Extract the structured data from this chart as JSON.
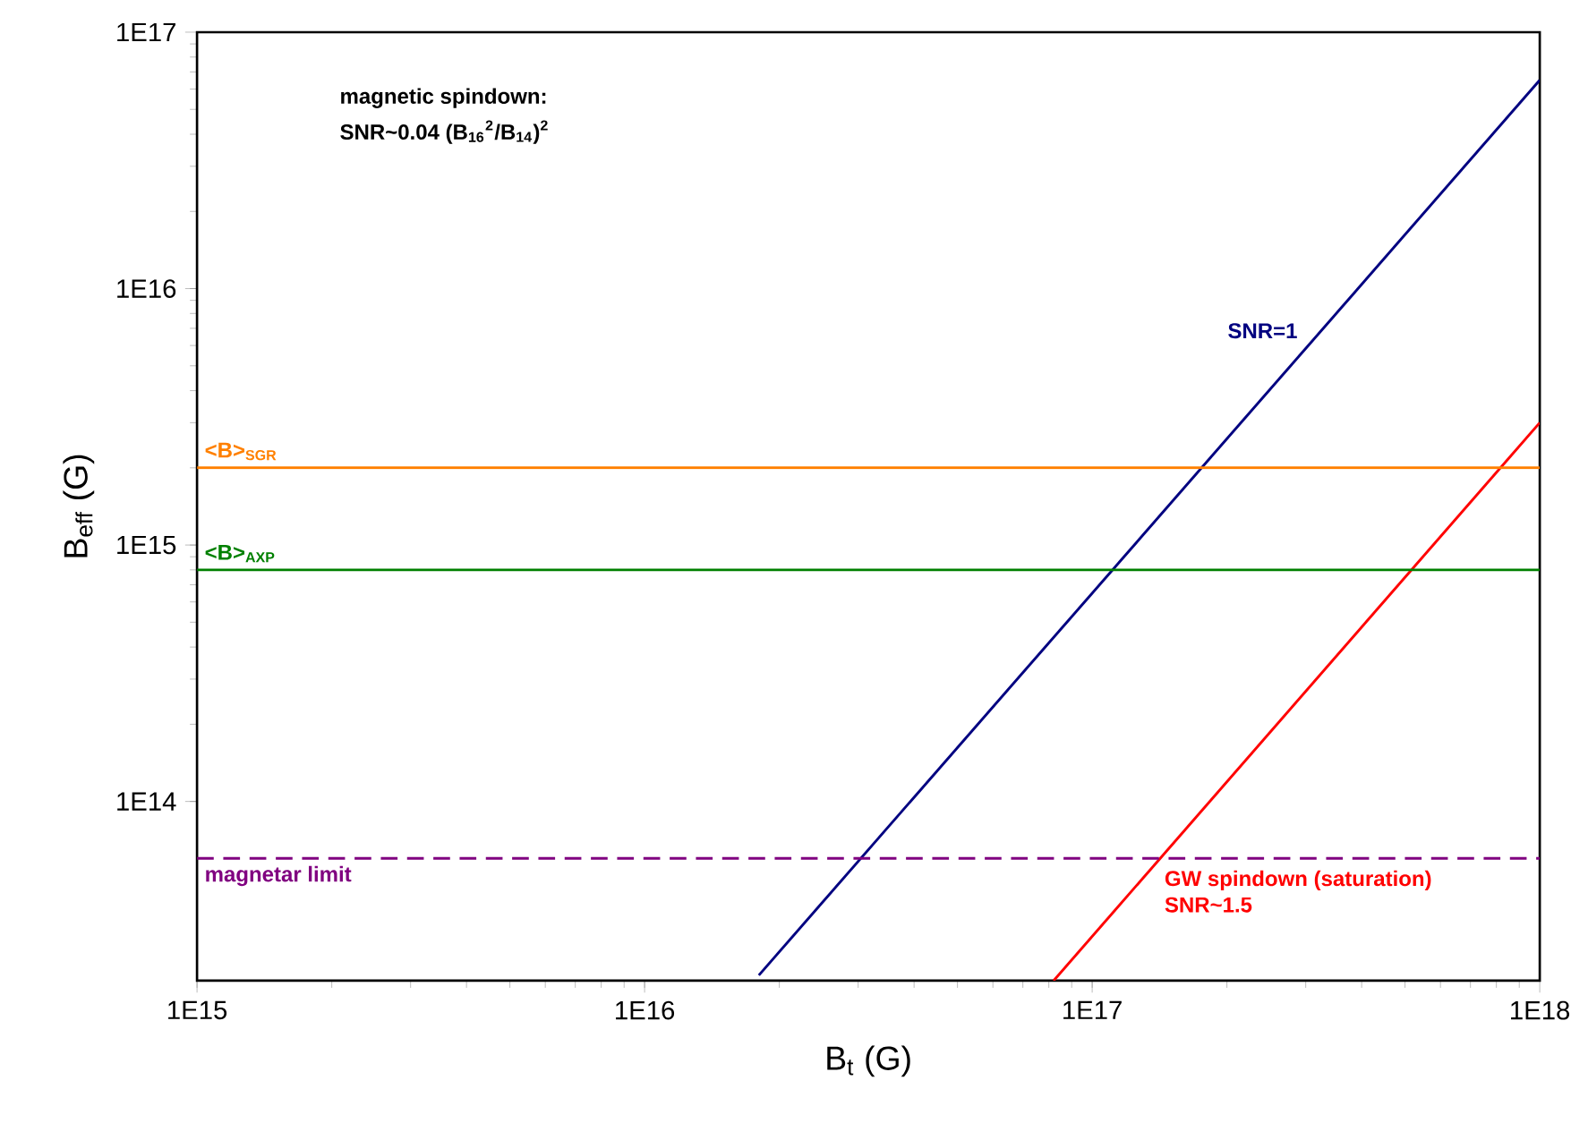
{
  "chart_data": {
    "type": "line",
    "xlabel": "B$_{t}$ (G)",
    "ylabel": "B$_{eff}$ (G)",
    "log": "xy",
    "marker": "none",
    "xlim": [
      1000000000000000.0,
      1e+18
    ],
    "ylim": [
      20000000000000.0,
      1e+17
    ],
    "xticks": [
      {
        "value": 1000000000000000.0,
        "label": "1E15"
      },
      {
        "value": 1e+16,
        "label": "1E16"
      },
      {
        "value": 1e+17,
        "label": "1E17"
      },
      {
        "value": 1e+18,
        "label": "1E18"
      }
    ],
    "yticks": [
      {
        "value": 100000000000000.0,
        "label": "1E14"
      },
      {
        "value": 1000000000000000.0,
        "label": "1E15"
      },
      {
        "value": 1e+16,
        "label": "1E16"
      },
      {
        "value": 1e+17,
        "label": "1E17"
      }
    ],
    "series": [
      {
        "name": "SNR=1",
        "color": "#000080",
        "x": [
          1.8e+16,
          1e+18
        ],
        "values": [
          21000000000000.0,
          6.5e+16
        ],
        "line_style": "solid"
      },
      {
        "name": "GW spindown (saturation)",
        "color": "#ff0000",
        "x": [
          8.2e+16,
          1e+18
        ],
        "values": [
          20000000000000.0,
          3000000000000000.0
        ],
        "line_style": "solid"
      }
    ],
    "ref_lines": [
      {
        "axis": "y",
        "value": 2000000000000000.0,
        "label": "<B>$_{SGR}$",
        "color": "#ff8000",
        "line_style": "solid"
      },
      {
        "axis": "y",
        "value": 800000000000000.0,
        "label": "<B>$_{AXP}$",
        "color": "#008000",
        "line_style": "solid"
      },
      {
        "axis": "y",
        "value": 60000000000000.0,
        "label": "magnetar limit",
        "color": "#800080",
        "line_style": "dashed"
      }
    ],
    "annotations": [
      "magnetic spindown:",
      "SNR~0.04 (B$_{16}$$^{2}$/B$_{14}$)$^{2}$",
      "SNR~1.5"
    ]
  }
}
